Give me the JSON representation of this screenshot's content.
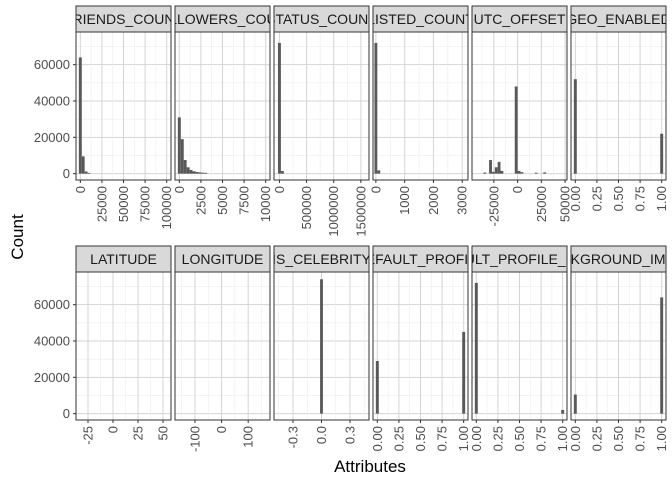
{
  "colors": {
    "bar": "#595959",
    "strip_fill": "#d9d9d9",
    "strip_border": "#333333",
    "grid_major": "#d4d4d4",
    "grid_minor": "#ececec",
    "axis_text": "#4d4d4d"
  },
  "chart_data": {
    "type": "bar",
    "subtype": "faceted-histogram",
    "xlabel": "Attributes",
    "ylabel": "Count",
    "y_axis": {
      "range": [
        -3500,
        78000
      ],
      "ticks": [
        0,
        20000,
        40000,
        60000
      ],
      "tick_labels": [
        "0",
        "20000",
        "40000",
        "60000"
      ]
    },
    "grid": true,
    "facets": [
      {
        "name": "FRIENDS_COUNT",
        "strip_label": "FRIENDS_COUNT",
        "x_range": [
          -5000,
          105000
        ],
        "x_ticks": [
          0,
          25000,
          50000,
          75000,
          100000
        ],
        "x_tick_labels": [
          "0",
          "25000",
          "50000",
          "75000",
          "100000"
        ],
        "bars": [
          {
            "x0": -1700,
            "x1": 1700,
            "count": 64000
          },
          {
            "x0": 1700,
            "x1": 5000,
            "count": 9500
          },
          {
            "x0": 5000,
            "x1": 8300,
            "count": 1200
          },
          {
            "x0": 8300,
            "x1": 11600,
            "count": 400
          }
        ]
      },
      {
        "name": "FOLLOWERS_COUNT",
        "strip_label": "FOLLOWERS_COUNT",
        "x_range": [
          -500,
          10500
        ],
        "x_ticks": [
          0,
          2500,
          5000,
          7500,
          10000
        ],
        "x_tick_labels": [
          "0",
          "2500",
          "5000",
          "7500",
          "10000"
        ],
        "bars": [
          {
            "x0": -170,
            "x1": 170,
            "count": 31000
          },
          {
            "x0": 170,
            "x1": 510,
            "count": 19000
          },
          {
            "x0": 510,
            "x1": 850,
            "count": 7500
          },
          {
            "x0": 850,
            "x1": 1190,
            "count": 3500
          },
          {
            "x0": 1190,
            "x1": 1530,
            "count": 2000
          },
          {
            "x0": 1530,
            "x1": 1870,
            "count": 1300
          },
          {
            "x0": 1870,
            "x1": 2210,
            "count": 900
          },
          {
            "x0": 2210,
            "x1": 2550,
            "count": 700
          },
          {
            "x0": 2550,
            "x1": 2890,
            "count": 550
          },
          {
            "x0": 2890,
            "x1": 3230,
            "count": 450
          }
        ]
      },
      {
        "name": "STATUS_COUNT",
        "strip_label": "STATUS_COUNT",
        "x_range": [
          -100000,
          1650000
        ],
        "x_ticks": [
          0,
          500000,
          1000000,
          1500000
        ],
        "x_tick_labels": [
          "0",
          "500000",
          "1000000",
          "1500000"
        ],
        "bars": [
          {
            "x0": -27000,
            "x1": 27000,
            "count": 72000
          },
          {
            "x0": 27000,
            "x1": 81000,
            "count": 1500
          }
        ]
      },
      {
        "name": "LISTED_COUNT",
        "strip_label": "LISTED_COUNT",
        "x_range": [
          -100,
          3200
        ],
        "x_ticks": [
          0,
          1000,
          2000,
          3000
        ],
        "x_tick_labels": [
          "0",
          "1000",
          "2000",
          "3000"
        ],
        "bars": [
          {
            "x0": -50,
            "x1": 50,
            "count": 72000
          },
          {
            "x0": 50,
            "x1": 150,
            "count": 1800
          }
        ]
      },
      {
        "name": "UTC_OFFSET",
        "strip_label": "UTC_OFFSET",
        "x_range": [
          -48000,
          52000
        ],
        "x_ticks": [
          -25000,
          0,
          25000,
          50000
        ],
        "x_tick_labels": [
          "-25000",
          "0",
          "25000",
          "50000"
        ],
        "bars": [
          {
            "x0": -36000,
            "x1": -33000,
            "count": 600
          },
          {
            "x0": -30000,
            "x1": -27000,
            "count": 7500
          },
          {
            "x0": -27000,
            "x1": -24000,
            "count": 1000
          },
          {
            "x0": -24000,
            "x1": -21000,
            "count": 3500
          },
          {
            "x0": -21000,
            "x1": -18000,
            "count": 6500
          },
          {
            "x0": -18000,
            "x1": -15000,
            "count": 1500
          },
          {
            "x0": -3000,
            "x1": 0,
            "count": 48000
          },
          {
            "x0": 0,
            "x1": 3000,
            "count": 1500
          },
          {
            "x0": 3000,
            "x1": 6000,
            "count": 800
          },
          {
            "x0": 18000,
            "x1": 21000,
            "count": 500
          },
          {
            "x0": 27000,
            "x1": 30000,
            "count": 700
          }
        ]
      },
      {
        "name": "GEO_ENABLED",
        "strip_label": "GEO_ENABLED",
        "x_range": [
          -0.05,
          1.05
        ],
        "x_ticks": [
          0,
          0.25,
          0.5,
          0.75,
          1
        ],
        "x_tick_labels": [
          "0.00",
          "0.25",
          "0.50",
          "0.75",
          "1.00"
        ],
        "bars": [
          {
            "x0": -0.017,
            "x1": 0.017,
            "count": 52000
          },
          {
            "x0": 0.983,
            "x1": 1.017,
            "count": 22000
          }
        ]
      },
      {
        "name": "LATITUDE",
        "strip_label": "LATITUDE",
        "x_range": [
          -37,
          58
        ],
        "x_ticks": [
          -25,
          0,
          25,
          50
        ],
        "x_tick_labels": [
          "-25",
          "0",
          "25",
          "50"
        ],
        "bars": []
      },
      {
        "name": "LONGITUDE",
        "strip_label": "LONGITUDE",
        "x_range": [
          -175,
          182
        ],
        "x_ticks": [
          -100,
          0,
          100
        ],
        "x_tick_labels": [
          "-100",
          "0",
          "100"
        ],
        "bars": []
      },
      {
        "name": "IS_CELEBRITY",
        "strip_label": "IS_CELEBRITY",
        "x_range": [
          -0.5,
          0.5
        ],
        "x_ticks": [
          -0.3,
          0,
          0.3
        ],
        "x_tick_labels": [
          "-0.3",
          "0.0",
          "0.3"
        ],
        "bars": [
          {
            "x0": -0.015,
            "x1": 0.015,
            "count": 74000
          }
        ]
      },
      {
        "name": "DEFAULT_PROFILE",
        "strip_label": "DEFAULT_PROFILE",
        "x_range": [
          -0.05,
          1.05
        ],
        "x_ticks": [
          0,
          0.25,
          0.5,
          0.75,
          1
        ],
        "x_tick_labels": [
          "0.00",
          "0.25",
          "0.50",
          "0.75",
          "1.00"
        ],
        "bars": [
          {
            "x0": -0.017,
            "x1": 0.017,
            "count": 29000
          },
          {
            "x0": 0.983,
            "x1": 1.017,
            "count": 45000
          }
        ]
      },
      {
        "name": "DEFAULT_PROFILE_IMAGE",
        "strip_label": "DEFAULT_PROFILE_IMAGE",
        "x_range": [
          -0.05,
          1.05
        ],
        "x_ticks": [
          0,
          0.25,
          0.5,
          0.75,
          1
        ],
        "x_tick_labels": [
          "0.00",
          "0.25",
          "0.50",
          "0.75",
          "1.00"
        ],
        "bars": [
          {
            "x0": -0.017,
            "x1": 0.017,
            "count": 72000
          },
          {
            "x0": 0.983,
            "x1": 1.017,
            "count": 2000
          }
        ]
      },
      {
        "name": "BACKGROUND_IMAGE",
        "strip_label": "BACKGROUND_IMAGE",
        "x_range": [
          -0.05,
          1.05
        ],
        "x_ticks": [
          0,
          0.25,
          0.5,
          0.75,
          1
        ],
        "x_tick_labels": [
          "0.00",
          "0.25",
          "0.50",
          "0.75",
          "1.00"
        ],
        "bars": [
          {
            "x0": -0.017,
            "x1": 0.017,
            "count": 10500
          },
          {
            "x0": 0.983,
            "x1": 1.017,
            "count": 64000
          }
        ]
      }
    ]
  }
}
